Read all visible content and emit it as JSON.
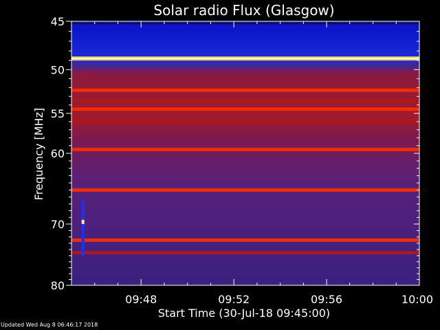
{
  "chart_data": {
    "type": "heatmap",
    "title": "Solar radio Flux (Glasgow)",
    "xlabel": "Start Time (30-Jul-18 09:45:00)",
    "ylabel": "Frequency [MHz]",
    "xlim_minutes_after_0945": [
      0,
      15
    ],
    "ylim": [
      45,
      80
    ],
    "y_reversed": true,
    "y_scale": "log",
    "x_ticks": [
      {
        "label": "09:48",
        "minute": 3
      },
      {
        "label": "09:52",
        "minute": 7
      },
      {
        "label": "09:56",
        "minute": 11
      },
      {
        "label": "10:00",
        "minute": 15
      }
    ],
    "y_ticks": [
      45,
      50,
      55,
      60,
      70,
      80
    ],
    "colormap": [
      "#10104a",
      "#3030a0",
      "#5a2a7a",
      "#b01818",
      "#ff3000",
      "#ffe060"
    ],
    "horizontal_bands": [
      {
        "freq_mhz": 45.2,
        "intensity": 0.05
      },
      {
        "freq_mhz": 48.8,
        "intensity": 1.0
      },
      {
        "freq_mhz": 49.5,
        "intensity": 0.15
      },
      {
        "freq_mhz": 52.3,
        "intensity": 0.85
      },
      {
        "freq_mhz": 53.5,
        "intensity": 0.6
      },
      {
        "freq_mhz": 54.5,
        "intensity": 0.7
      },
      {
        "freq_mhz": 56.0,
        "intensity": 0.55
      },
      {
        "freq_mhz": 59.5,
        "intensity": 0.75
      },
      {
        "freq_mhz": 65.0,
        "intensity": 0.8
      },
      {
        "freq_mhz": 72.5,
        "intensity": 0.85
      },
      {
        "freq_mhz": 74.5,
        "intensity": 0.55
      }
    ],
    "burst": {
      "minute": 0.2,
      "freq_range_mhz": [
        66.5,
        75.0
      ]
    }
  },
  "footer": {
    "updated": "Updated Wed Aug  8 06:46:17 2018"
  }
}
